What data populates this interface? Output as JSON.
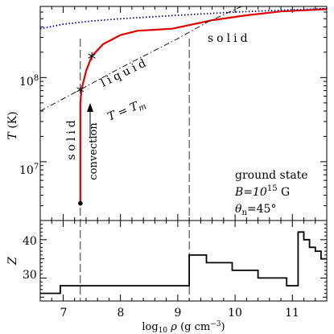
{
  "colors": {
    "axis": "#000000",
    "temperature_profile": "#e00000",
    "upper_dotted": "#0000cc",
    "z_profile": "#000000"
  },
  "labels": {
    "solid_lower": "solid",
    "solid_upper": "solid",
    "liquid": "liquid",
    "melting": "T = T",
    "melting_sub": "m",
    "convection": "convection",
    "ground_state": "ground state",
    "field": "B=10",
    "field_exp": "15",
    "field_unit": " G",
    "angle": "θ",
    "angle_sub": "n",
    "angle_val": "=45°"
  },
  "chart_data": [
    {
      "type": "line",
      "panel": "top",
      "title": "",
      "xlabel": "",
      "ylabel": "T (K)",
      "yscale": "log",
      "xlim": [
        6.6,
        11.6
      ],
      "ylim": [
        2000000,
        700000000
      ],
      "y_ticks": [
        10000000,
        100000000
      ],
      "y_tick_labels": [
        "10^7",
        "10^8"
      ],
      "grid": false,
      "series": [
        {
          "key": "temperature_profile",
          "style": "solid-red-thick",
          "points": [
            [
              7.3,
              3200000
            ],
            [
              7.3,
              50000000
            ],
            [
              7.32,
              72000000
            ],
            [
              7.4,
              120000000
            ],
            [
              7.5,
              180000000
            ],
            [
              7.7,
              250000000
            ],
            [
              8.0,
              320000000
            ],
            [
              8.3,
              360000000
            ],
            [
              8.6,
              370000000
            ],
            [
              8.9,
              380000000
            ],
            [
              9.2,
              420000000
            ],
            [
              9.6,
              480000000
            ],
            [
              10.2,
              550000000
            ],
            [
              10.8,
              610000000
            ],
            [
              11.6,
              650000000
            ]
          ]
        },
        {
          "key": "upper_dotted",
          "style": "dotted-blue",
          "points": [
            [
              6.6,
              380000000
            ],
            [
              7.0,
              430000000
            ],
            [
              7.5,
              470000000
            ],
            [
              8.0,
              500000000
            ],
            [
              9.0,
              550000000
            ],
            [
              10.0,
              600000000
            ],
            [
              11.0,
              640000000
            ],
            [
              11.6,
              660000000
            ]
          ]
        },
        {
          "key": "melting_line",
          "style": "dash-dot-black",
          "points": [
            [
              6.6,
              40000000
            ],
            [
              7.3,
              72000000
            ],
            [
              8.0,
              130000000
            ],
            [
              9.0,
              290000000
            ],
            [
              9.5,
              450000000
            ],
            [
              10.3,
              800000000
            ]
          ]
        }
      ],
      "markers": [
        {
          "type": "dot",
          "x": 7.3,
          "y": 3200000
        },
        {
          "type": "star",
          "x": 7.3,
          "y": 72000000
        },
        {
          "type": "star",
          "x": 7.5,
          "y": 180000000
        }
      ],
      "vlines": [
        7.3,
        9.2
      ]
    },
    {
      "type": "line",
      "panel": "bottom",
      "title": "",
      "xlabel": "log10 ρ (g cm−3)",
      "ylabel": "Z",
      "xlim": [
        6.6,
        11.6
      ],
      "ylim": [
        24,
        45
      ],
      "x_ticks": [
        7,
        8,
        9,
        10,
        11
      ],
      "x_tick_labels": [
        "7",
        "8",
        "9",
        "10",
        "11"
      ],
      "y_ticks": [
        30,
        40
      ],
      "y_tick_labels": [
        "30",
        "40"
      ],
      "grid": false,
      "series": [
        {
          "key": "z_profile",
          "style": "step",
          "points": [
            [
              6.6,
              26
            ],
            [
              6.95,
              26
            ],
            [
              6.95,
              28
            ],
            [
              9.2,
              28
            ],
            [
              9.2,
              36
            ],
            [
              9.5,
              36
            ],
            [
              9.5,
              34
            ],
            [
              9.95,
              34
            ],
            [
              9.95,
              32
            ],
            [
              10.4,
              32
            ],
            [
              10.4,
              30
            ],
            [
              10.9,
              30
            ],
            [
              10.9,
              28
            ],
            [
              11.1,
              28
            ],
            [
              11.1,
              42
            ],
            [
              11.2,
              42
            ],
            [
              11.2,
              40
            ],
            [
              11.3,
              40
            ],
            [
              11.3,
              38
            ],
            [
              11.4,
              38
            ],
            [
              11.4,
              37
            ],
            [
              11.5,
              37
            ],
            [
              11.5,
              35
            ],
            [
              11.6,
              35
            ]
          ]
        }
      ],
      "vlines": [
        7.3,
        9.2
      ]
    }
  ]
}
